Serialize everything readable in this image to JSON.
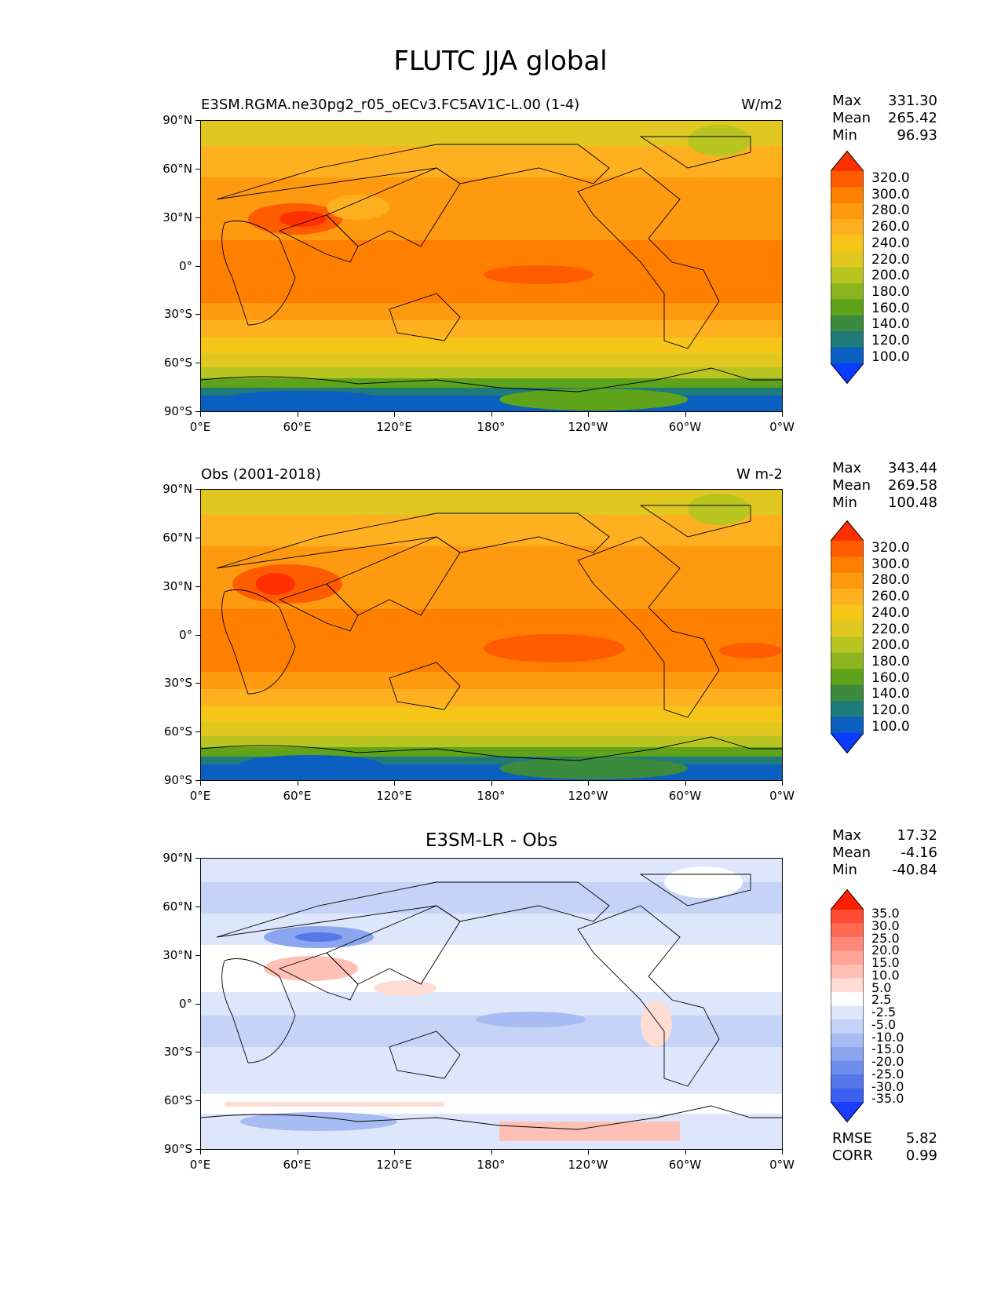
{
  "title": "FLUTC JJA global",
  "x_ticks": [
    "0°E",
    "60°E",
    "120°E",
    "180°",
    "120°W",
    "60°W",
    "0°W"
  ],
  "y_ticks": [
    "90°N",
    "60°N",
    "30°N",
    "0°",
    "30°S",
    "60°S",
    "90°S"
  ],
  "panels": [
    {
      "left_title": "E3SM.RGMA.ne30pg2_r05_oECv3.FC5AV1C-L.00 (1-4)",
      "right_title": "W/m2",
      "stats": {
        "max_label": "Max",
        "max": "331.30",
        "mean_label": "Mean",
        "mean": "265.42",
        "min_label": "Min",
        "min": "96.93"
      },
      "colorbar_labels": [
        "320.0",
        "300.0",
        "280.0",
        "260.0",
        "240.0",
        "220.0",
        "200.0",
        "180.0",
        "160.0",
        "140.0",
        "120.0",
        "100.0"
      ]
    },
    {
      "left_title": "Obs (2001-2018)",
      "right_title": "W m-2",
      "stats": {
        "max_label": "Max",
        "max": "343.44",
        "mean_label": "Mean",
        "mean": "269.58",
        "min_label": "Min",
        "min": "100.48"
      },
      "colorbar_labels": [
        "320.0",
        "300.0",
        "280.0",
        "260.0",
        "240.0",
        "220.0",
        "200.0",
        "180.0",
        "160.0",
        "140.0",
        "120.0",
        "100.0"
      ]
    },
    {
      "center_title": "E3SM-LR - Obs",
      "stats": {
        "max_label": "Max",
        "max": "17.32",
        "mean_label": "Mean",
        "mean": "-4.16",
        "min_label": "Min",
        "min": "-40.84"
      },
      "colorbar_labels": [
        "35.0",
        "30.0",
        "25.0",
        "20.0",
        "15.0",
        "10.0",
        "5.0",
        "2.5",
        "-2.5",
        "-5.0",
        "-10.0",
        "-15.0",
        "-20.0",
        "-25.0",
        "-30.0",
        "-35.0"
      ],
      "rmse_label": "RMSE",
      "rmse": "5.82",
      "corr_label": "CORR",
      "corr": "0.99"
    }
  ],
  "colors": {
    "abs_scale": [
      "#ff3000",
      "#ff5c00",
      "#ff7f00",
      "#ff9a10",
      "#ffb020",
      "#f5c518",
      "#e0c820",
      "#b8c420",
      "#8cb41e",
      "#5fa31a",
      "#3b8a3e",
      "#1f7a7a",
      "#0a5fc0",
      "#0a3cff"
    ],
    "diff_scale": [
      "#ff2000",
      "#ff4a35",
      "#ff6a55",
      "#ff8878",
      "#ffa598",
      "#ffc0b5",
      "#ffdcd4",
      "#ffffff",
      "#dde6fb",
      "#c4d3f7",
      "#a7bcf2",
      "#8ba6ee",
      "#6e8eeb",
      "#5577ea",
      "#3d60ef",
      "#1a3cff"
    ]
  },
  "chart_data": [
    {
      "type": "heatmap",
      "title": "E3SM.RGMA.ne30pg2_r05_oECv3.FC5AV1C-L.00 (1-4)",
      "units": "W/m2",
      "xlim": [
        0,
        360
      ],
      "ylim": [
        -90,
        90
      ],
      "levels": [
        100,
        120,
        140,
        160,
        180,
        200,
        220,
        240,
        260,
        280,
        300,
        320
      ],
      "max": 331.3,
      "mean": 265.42,
      "min": 96.93
    },
    {
      "type": "heatmap",
      "title": "Obs (2001-2018)",
      "units": "W m-2",
      "xlim": [
        0,
        360
      ],
      "ylim": [
        -90,
        90
      ],
      "levels": [
        100,
        120,
        140,
        160,
        180,
        200,
        220,
        240,
        260,
        280,
        300,
        320
      ],
      "max": 343.44,
      "mean": 269.58,
      "min": 100.48
    },
    {
      "type": "heatmap",
      "title": "E3SM-LR - Obs",
      "xlim": [
        0,
        360
      ],
      "ylim": [
        -90,
        90
      ],
      "levels": [
        -35,
        -30,
        -25,
        -20,
        -15,
        -10,
        -5,
        -2.5,
        2.5,
        5,
        10,
        15,
        20,
        25,
        30,
        35
      ],
      "max": 17.32,
      "mean": -4.16,
      "min": -40.84,
      "rmse": 5.82,
      "corr": 0.99
    }
  ]
}
